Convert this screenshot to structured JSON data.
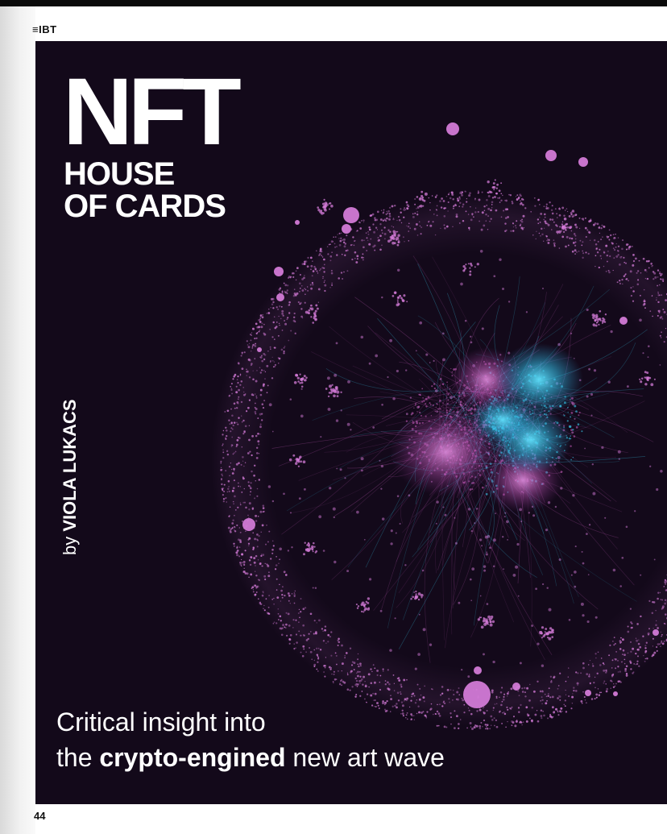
{
  "header": {
    "logo": "≡IBT"
  },
  "cover": {
    "title_main": "NFT",
    "title_line1": "HOUSE",
    "title_line2": "OF CARDS",
    "byline_prefix": "by ",
    "byline_author": "VIOLA LUKACS",
    "subtitle_line1": "Critical insight into",
    "subtitle_line2_pre": "the ",
    "subtitle_line2_bold": "crypto-engined",
    "subtitle_line2_post": " new art wave"
  },
  "artwork": {
    "description_icon": "network-graph-illustration",
    "colors": {
      "background": "#13091a",
      "nodes": "#d27ad6",
      "core_cyan": "#38c9ec",
      "core_pink": "#c15ab8"
    }
  },
  "footer": {
    "page_number": "44"
  }
}
